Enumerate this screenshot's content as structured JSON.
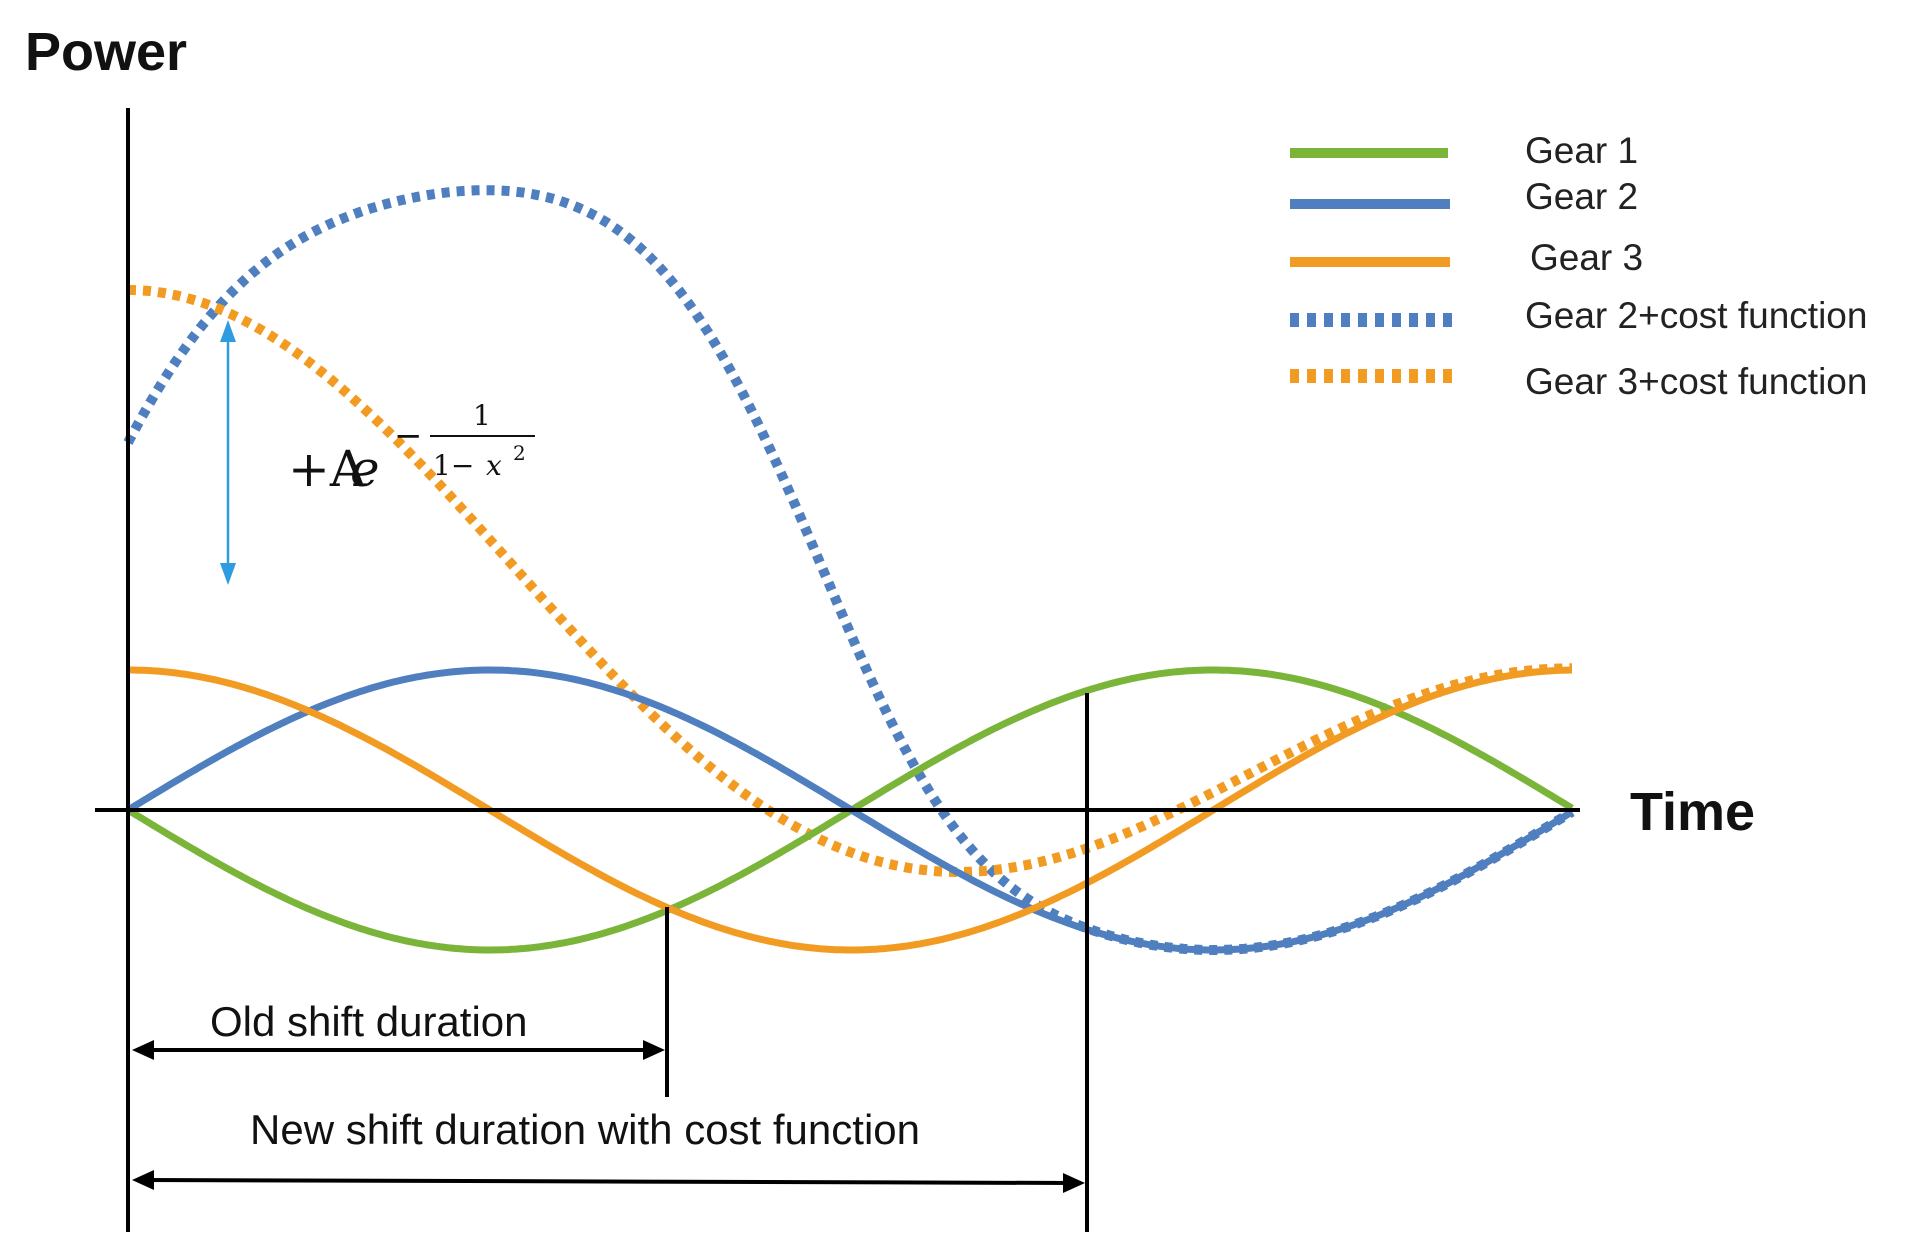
{
  "axes": {
    "y_title": "Power",
    "x_title": "Time"
  },
  "colors": {
    "gear1": "#7ab53a",
    "gear2": "#4f7fbf",
    "gear3": "#f29b22",
    "axis": "#000000",
    "arrow_blue": "#2f9be0"
  },
  "legend": [
    {
      "label": "Gear 1",
      "style": "solid",
      "color_key": "gear1"
    },
    {
      "label": "Gear 2",
      "style": "solid",
      "color_key": "gear2"
    },
    {
      "label": "Gear 3",
      "style": "solid",
      "color_key": "gear3"
    },
    {
      "label": "Gear 2+cost function",
      "style": "dotted",
      "color_key": "gear2"
    },
    {
      "label": "Gear 3+cost function",
      "style": "dotted",
      "color_key": "gear3"
    }
  ],
  "formula": {
    "prefix": "+A",
    "base": "e",
    "minus": "−",
    "numerator": "1",
    "denominator_left": "1−",
    "denominator_var": "x",
    "denominator_exp": "2"
  },
  "annotations": {
    "old_shift": "Old shift duration",
    "new_shift": "New shift duration with cost function"
  }
}
